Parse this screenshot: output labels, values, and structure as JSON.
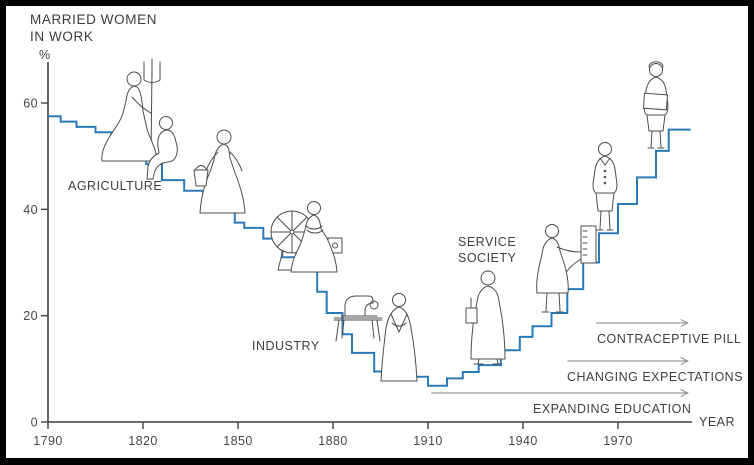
{
  "title": {
    "line1": "MARRIED WOMEN",
    "line2": "IN WORK"
  },
  "axis": {
    "y_unit_label": "%",
    "x_axis_label": "YEAR"
  },
  "era_labels": {
    "agriculture": "AGRICULTURE",
    "industry": "INDUSTRY",
    "service_line1": "SERVICE",
    "service_line2": "SOCIETY"
  },
  "colors": {
    "line": "#2b7ab8",
    "axis": "#3f3f3f",
    "text": "#3f3f3f",
    "arrow": "#9a9a9a",
    "figure_outline": "#4d4d4d",
    "background": "#ffffff",
    "frame_border": "#000000"
  },
  "figures": [
    {
      "name": "woman-with-pitchfork",
      "era": "agriculture"
    },
    {
      "name": "seated-farm-woman",
      "era": "agriculture"
    },
    {
      "name": "woman-carrying-milk-pail",
      "era": "agriculture"
    },
    {
      "name": "woman-at-spinning-wheel",
      "era": "industry"
    },
    {
      "name": "sewing-machine-on-table",
      "era": "industry"
    },
    {
      "name": "mill-worker-woman",
      "era": "industry"
    },
    {
      "name": "service-society-woman-with-bag",
      "era": "service"
    },
    {
      "name": "woman-operating-switchboard",
      "era": "service"
    },
    {
      "name": "woman-in-skirt-suit",
      "era": "service"
    },
    {
      "name": "professional-woman-with-folder",
      "era": "service"
    }
  ],
  "chart_data": {
    "type": "line",
    "style": "step-after",
    "title": "MARRIED WOMEN IN WORK",
    "xlabel": "YEAR",
    "ylabel": "%",
    "xlim": [
      1790,
      1995
    ],
    "ylim": [
      0,
      67
    ],
    "grid": false,
    "x_ticks": [
      1790,
      1820,
      1850,
      1880,
      1910,
      1940,
      1970
    ],
    "y_ticks": [
      0,
      20,
      40,
      60
    ],
    "series": [
      {
        "name": "married women in work (%)",
        "points": [
          [
            1790,
            57.5
          ],
          [
            1794,
            56.5
          ],
          [
            1799,
            55.5
          ],
          [
            1805,
            54.5
          ],
          [
            1810,
            53.0
          ],
          [
            1816,
            51.0
          ],
          [
            1821,
            48.5
          ],
          [
            1826,
            45.5
          ],
          [
            1833,
            43.5
          ],
          [
            1839,
            42.0
          ],
          [
            1844,
            40.0
          ],
          [
            1849,
            37.5
          ],
          [
            1852,
            36.5
          ],
          [
            1858,
            34.5
          ],
          [
            1864,
            31.0
          ],
          [
            1870,
            28.5
          ],
          [
            1875,
            24.5
          ],
          [
            1878,
            20.5
          ],
          [
            1883,
            16.5
          ],
          [
            1886,
            13.0
          ],
          [
            1893,
            9.5
          ],
          [
            1900,
            8.5
          ],
          [
            1910,
            6.8
          ],
          [
            1916,
            8.2
          ],
          [
            1921,
            9.4
          ],
          [
            1926,
            10.7
          ],
          [
            1933,
            13.5
          ],
          [
            1939,
            16.0
          ],
          [
            1943,
            18.0
          ],
          [
            1949,
            20.5
          ],
          [
            1954,
            25.0
          ],
          [
            1959,
            30.0
          ],
          [
            1964,
            35.5
          ],
          [
            1970,
            41.0
          ],
          [
            1976,
            46.0
          ],
          [
            1982,
            51.0
          ],
          [
            1986,
            55.0
          ],
          [
            1993,
            55.0
          ]
        ]
      }
    ],
    "annotations": [
      {
        "label": "CONTRACEPTIVE PILL",
        "from_year": 1963,
        "to_year": 1992
      },
      {
        "label": "CHANGING EXPECTATIONS",
        "from_year": 1954,
        "to_year": 1992
      },
      {
        "label": "EXPANDING EDUCATION",
        "from_year": 1911,
        "to_year": 1992
      }
    ]
  }
}
